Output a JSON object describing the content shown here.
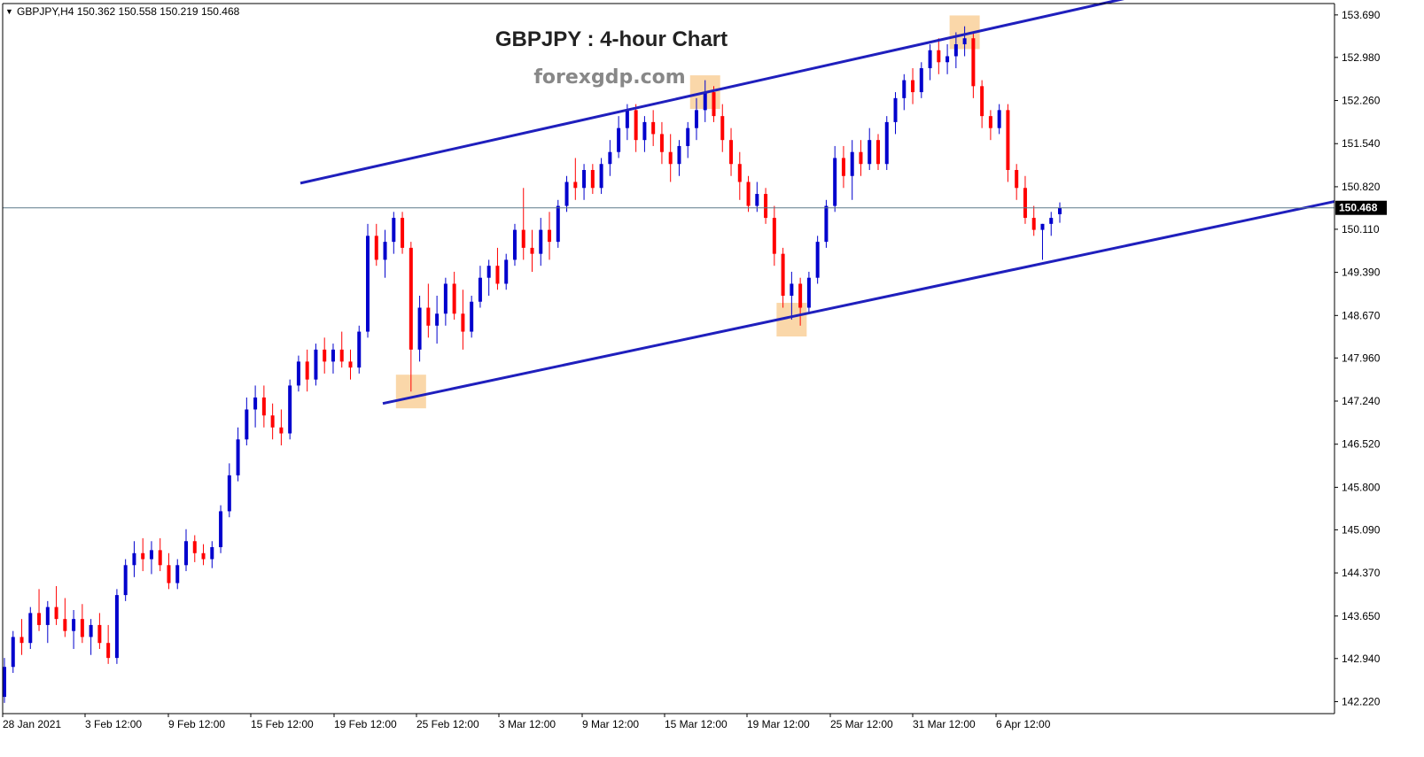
{
  "window": {
    "symbol_line": "GBPJPY,H4  150.362 150.558 150.219 150.468",
    "arrow_glyph": "▼"
  },
  "annotations": {
    "title": "GBPJPY : 4-hour Chart",
    "watermark": "forexgdp.com"
  },
  "colors": {
    "bull": "#0000cd",
    "bear": "#ff0000",
    "channel": "#1f1fbd",
    "highlight": "#f8c98c",
    "price_line": "#5f7a8a",
    "axis": "#000000",
    "title_text": "#222222",
    "watermark_text": "#888888",
    "price_badge_bg": "#000000",
    "price_badge_text": "#ffffff"
  },
  "chart_data": {
    "type": "candlestick",
    "symbol": "GBPJPY",
    "timeframe": "H4",
    "ohlc_current": {
      "open": 150.362,
      "high": 150.558,
      "low": 150.219,
      "close": 150.468
    },
    "current_price_label": "150.468",
    "y_axis": {
      "ylim": [
        142.02,
        153.88
      ],
      "tick_labels": [
        "153.690",
        "152.980",
        "152.260",
        "151.540",
        "150.820",
        "150.110",
        "149.390",
        "148.670",
        "147.960",
        "147.240",
        "146.520",
        "145.800",
        "145.090",
        "144.370",
        "143.650",
        "142.940",
        "142.220"
      ],
      "tick_values": [
        153.69,
        152.98,
        152.26,
        151.54,
        150.82,
        150.11,
        149.39,
        148.67,
        147.96,
        147.24,
        146.52,
        145.8,
        145.09,
        144.37,
        143.65,
        142.94,
        142.22
      ]
    },
    "x_axis": {
      "tick_labels": [
        "28 Jan 2021",
        "3 Feb 12:00",
        "9 Feb 12:00",
        "15 Feb 12:00",
        "19 Feb 12:00",
        "25 Feb 12:00",
        "3 Mar 12:00",
        "9 Mar 12:00",
        "15 Mar 12:00",
        "19 Mar 12:00",
        "25 Mar 12:00",
        "31 Mar 12:00",
        "6 Apr 12:00"
      ]
    },
    "series": [
      {
        "values": [
          [
            142.3,
            142.95,
            142.2,
            142.8
          ],
          [
            142.8,
            143.4,
            142.7,
            143.3
          ],
          [
            143.3,
            143.6,
            143.0,
            143.2
          ],
          [
            143.2,
            143.8,
            143.1,
            143.7
          ],
          [
            143.7,
            144.1,
            143.4,
            143.5
          ],
          [
            143.5,
            143.9,
            143.2,
            143.8
          ],
          [
            143.8,
            144.15,
            143.5,
            143.6
          ],
          [
            143.6,
            143.95,
            143.3,
            143.4
          ],
          [
            143.4,
            143.75,
            143.1,
            143.6
          ],
          [
            143.6,
            143.85,
            143.2,
            143.3
          ],
          [
            143.3,
            143.6,
            143.0,
            143.5
          ],
          [
            143.5,
            143.7,
            143.1,
            143.2
          ],
          [
            143.2,
            143.5,
            142.85,
            142.95
          ],
          [
            142.95,
            144.1,
            142.85,
            144.0
          ],
          [
            144.0,
            144.6,
            143.9,
            144.5
          ],
          [
            144.5,
            144.9,
            144.3,
            144.7
          ],
          [
            144.7,
            144.95,
            144.4,
            144.6
          ],
          [
            144.6,
            144.9,
            144.35,
            144.75
          ],
          [
            144.75,
            144.95,
            144.4,
            144.5
          ],
          [
            144.5,
            144.7,
            144.1,
            144.2
          ],
          [
            144.2,
            144.6,
            144.1,
            144.5
          ],
          [
            144.5,
            145.1,
            144.4,
            144.9
          ],
          [
            144.9,
            145.0,
            144.55,
            144.7
          ],
          [
            144.7,
            144.85,
            144.5,
            144.6
          ],
          [
            144.6,
            144.9,
            144.45,
            144.8
          ],
          [
            144.8,
            145.5,
            144.7,
            145.4
          ],
          [
            145.4,
            146.2,
            145.3,
            146.0
          ],
          [
            146.0,
            146.8,
            145.9,
            146.6
          ],
          [
            146.6,
            147.3,
            146.5,
            147.1
          ],
          [
            147.1,
            147.5,
            146.8,
            147.3
          ],
          [
            147.3,
            147.5,
            146.8,
            147.0
          ],
          [
            147.0,
            147.2,
            146.6,
            146.8
          ],
          [
            146.8,
            147.1,
            146.5,
            146.7
          ],
          [
            146.7,
            147.6,
            146.6,
            147.5
          ],
          [
            147.5,
            148.0,
            147.4,
            147.9
          ],
          [
            147.9,
            148.1,
            147.4,
            147.6
          ],
          [
            147.6,
            148.2,
            147.5,
            148.1
          ],
          [
            148.1,
            148.3,
            147.7,
            147.9
          ],
          [
            147.9,
            148.2,
            147.7,
            148.1
          ],
          [
            148.1,
            148.4,
            147.8,
            147.9
          ],
          [
            147.9,
            148.1,
            147.6,
            147.8
          ],
          [
            147.8,
            148.5,
            147.7,
            148.4
          ],
          [
            148.4,
            150.2,
            148.3,
            150.0
          ],
          [
            150.0,
            150.2,
            149.5,
            149.6
          ],
          [
            149.6,
            150.1,
            149.3,
            149.9
          ],
          [
            149.9,
            150.4,
            149.7,
            150.3
          ],
          [
            150.3,
            150.4,
            149.7,
            149.8
          ],
          [
            149.8,
            149.9,
            147.4,
            148.1
          ],
          [
            148.1,
            149.0,
            147.9,
            148.8
          ],
          [
            148.8,
            149.2,
            148.3,
            148.5
          ],
          [
            148.5,
            149.0,
            148.2,
            148.7
          ],
          [
            148.7,
            149.3,
            148.5,
            149.2
          ],
          [
            149.2,
            149.4,
            148.6,
            148.7
          ],
          [
            148.7,
            149.1,
            148.1,
            148.4
          ],
          [
            148.4,
            149.0,
            148.3,
            148.9
          ],
          [
            148.9,
            149.5,
            148.8,
            149.3
          ],
          [
            149.3,
            149.6,
            149.0,
            149.5
          ],
          [
            149.5,
            149.8,
            149.1,
            149.2
          ],
          [
            149.2,
            149.7,
            149.1,
            149.6
          ],
          [
            149.6,
            150.2,
            149.5,
            150.1
          ],
          [
            150.1,
            150.8,
            149.6,
            149.8
          ],
          [
            149.8,
            150.1,
            149.4,
            149.7
          ],
          [
            149.7,
            150.3,
            149.5,
            150.1
          ],
          [
            150.1,
            150.4,
            149.6,
            149.9
          ],
          [
            149.9,
            150.6,
            149.8,
            150.5
          ],
          [
            150.5,
            151.0,
            150.4,
            150.9
          ],
          [
            150.9,
            151.3,
            150.6,
            150.8
          ],
          [
            150.8,
            151.2,
            150.6,
            151.1
          ],
          [
            151.1,
            151.2,
            150.7,
            150.8
          ],
          [
            150.8,
            151.3,
            150.7,
            151.2
          ],
          [
            151.2,
            151.6,
            151.0,
            151.4
          ],
          [
            151.4,
            152.0,
            151.3,
            151.8
          ],
          [
            151.8,
            152.2,
            151.6,
            152.1
          ],
          [
            152.1,
            152.2,
            151.4,
            151.6
          ],
          [
            151.6,
            152.0,
            151.4,
            151.9
          ],
          [
            151.9,
            152.1,
            151.5,
            151.7
          ],
          [
            151.7,
            151.9,
            151.2,
            151.4
          ],
          [
            151.4,
            151.7,
            150.9,
            151.2
          ],
          [
            151.2,
            151.6,
            151.0,
            151.5
          ],
          [
            151.5,
            151.9,
            151.3,
            151.8
          ],
          [
            151.8,
            152.3,
            151.6,
            152.1
          ],
          [
            152.1,
            152.6,
            151.9,
            152.4
          ],
          [
            152.4,
            152.5,
            151.9,
            152.0
          ],
          [
            152.0,
            152.2,
            151.4,
            151.6
          ],
          [
            151.6,
            151.8,
            151.0,
            151.2
          ],
          [
            151.2,
            151.4,
            150.6,
            150.9
          ],
          [
            150.9,
            151.0,
            150.4,
            150.5
          ],
          [
            150.5,
            150.9,
            150.4,
            150.7
          ],
          [
            150.7,
            150.8,
            150.2,
            150.3
          ],
          [
            150.3,
            150.5,
            149.5,
            149.7
          ],
          [
            149.7,
            149.8,
            148.8,
            149.0
          ],
          [
            149.0,
            149.4,
            148.6,
            149.2
          ],
          [
            149.2,
            149.3,
            148.5,
            148.8
          ],
          [
            148.8,
            149.4,
            148.7,
            149.3
          ],
          [
            149.3,
            150.0,
            149.2,
            149.9
          ],
          [
            149.9,
            150.6,
            149.8,
            150.5
          ],
          [
            150.5,
            151.5,
            150.4,
            151.3
          ],
          [
            151.3,
            151.5,
            150.8,
            151.0
          ],
          [
            151.0,
            151.6,
            150.6,
            151.4
          ],
          [
            151.4,
            151.6,
            151.0,
            151.2
          ],
          [
            151.2,
            151.8,
            151.1,
            151.6
          ],
          [
            151.6,
            151.7,
            151.1,
            151.2
          ],
          [
            151.2,
            152.0,
            151.1,
            151.9
          ],
          [
            151.9,
            152.4,
            151.7,
            152.3
          ],
          [
            152.3,
            152.7,
            152.1,
            152.6
          ],
          [
            152.6,
            152.8,
            152.2,
            152.4
          ],
          [
            152.4,
            152.9,
            152.3,
            152.8
          ],
          [
            152.8,
            153.2,
            152.6,
            153.1
          ],
          [
            153.1,
            153.3,
            152.7,
            152.9
          ],
          [
            152.9,
            153.2,
            152.7,
            153.0
          ],
          [
            153.0,
            153.4,
            152.8,
            153.2
          ],
          [
            153.2,
            153.5,
            153.0,
            153.3
          ],
          [
            153.3,
            153.4,
            152.3,
            152.5
          ],
          [
            152.5,
            152.6,
            151.8,
            152.0
          ],
          [
            152.0,
            152.1,
            151.6,
            151.8
          ],
          [
            151.8,
            152.2,
            151.7,
            152.1
          ],
          [
            152.1,
            152.2,
            150.9,
            151.1
          ],
          [
            151.1,
            151.2,
            150.6,
            150.8
          ],
          [
            150.8,
            151.0,
            150.2,
            150.3
          ],
          [
            150.3,
            150.5,
            150.0,
            150.1
          ],
          [
            150.1,
            150.2,
            149.6,
            150.2
          ],
          [
            150.2,
            150.4,
            150.0,
            150.3
          ],
          [
            150.362,
            150.558,
            150.219,
            150.468
          ]
        ]
      }
    ],
    "trendlines": [
      {
        "name": "upper-channel",
        "points": [
          [
            "19 Feb 12:00",
            150.88
          ],
          [
            "6 Apr 12:00",
            153.72
          ]
        ]
      },
      {
        "name": "lower-channel",
        "points": [
          [
            "25 Feb 12:00",
            147.2
          ],
          [
            "6 Apr 12:00",
            149.6
          ]
        ]
      }
    ],
    "highlights": [
      {
        "at_candle": 47,
        "price": 147.4
      },
      {
        "at_candle": 81,
        "price": 152.4
      },
      {
        "at_candle": 91,
        "price": 148.6
      },
      {
        "at_candle": 111,
        "price": 153.4
      }
    ]
  }
}
